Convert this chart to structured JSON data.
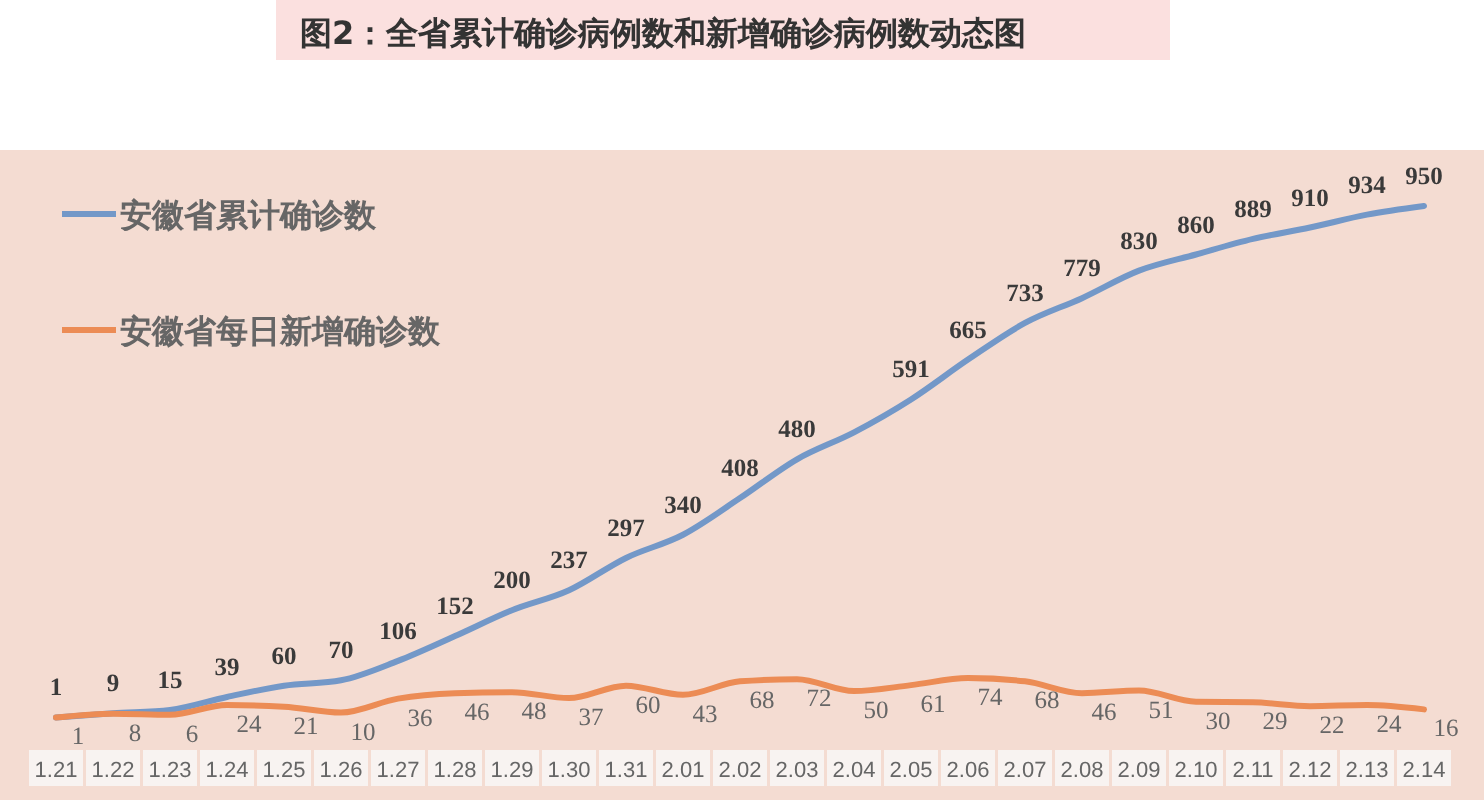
{
  "chart_data": {
    "type": "line",
    "title": "图2：全省累计确诊病例数和新增确诊病例数动态图",
    "categories": [
      "1.21",
      "1.22",
      "1.23",
      "1.24",
      "1.25",
      "1.26",
      "1.27",
      "1.28",
      "1.29",
      "1.30",
      "1.31",
      "2.01",
      "2.02",
      "2.03",
      "2.04",
      "2.05",
      "2.06",
      "2.07",
      "2.08",
      "2.09",
      "2.10",
      "2.11",
      "2.12",
      "2.13",
      "2.14"
    ],
    "series": [
      {
        "name": "安徽省累计确诊数",
        "color": "#7398c8",
        "values": [
          1,
          9,
          15,
          39,
          60,
          70,
          106,
          152,
          200,
          237,
          297,
          340,
          408,
          480,
          530,
          591,
          665,
          733,
          779,
          830,
          860,
          889,
          910,
          934,
          950
        ],
        "value_labels": [
          "1",
          "9",
          "15",
          "39",
          "60",
          "70",
          "106",
          "152",
          "200",
          "237",
          "297",
          "340",
          "408",
          "480",
          null,
          "591",
          "665",
          "733",
          "779",
          "830",
          "860",
          "889",
          "910",
          "934",
          "950"
        ]
      },
      {
        "name": "安徽省每日新增确诊数",
        "color": "#ec8c55",
        "values": [
          1,
          8,
          6,
          24,
          21,
          10,
          36,
          46,
          48,
          37,
          60,
          43,
          68,
          72,
          50,
          61,
          74,
          68,
          46,
          51,
          30,
          29,
          22,
          24,
          16
        ],
        "value_labels": [
          "1",
          "8",
          "6",
          "24",
          "21",
          "10",
          "36",
          "46",
          "48",
          "37",
          "60",
          "43",
          "68",
          "72",
          "50",
          "61",
          "74",
          "68",
          "46",
          "51",
          "30",
          "29",
          "22",
          "24",
          "16"
        ]
      }
    ],
    "legend": "top left"
  }
}
